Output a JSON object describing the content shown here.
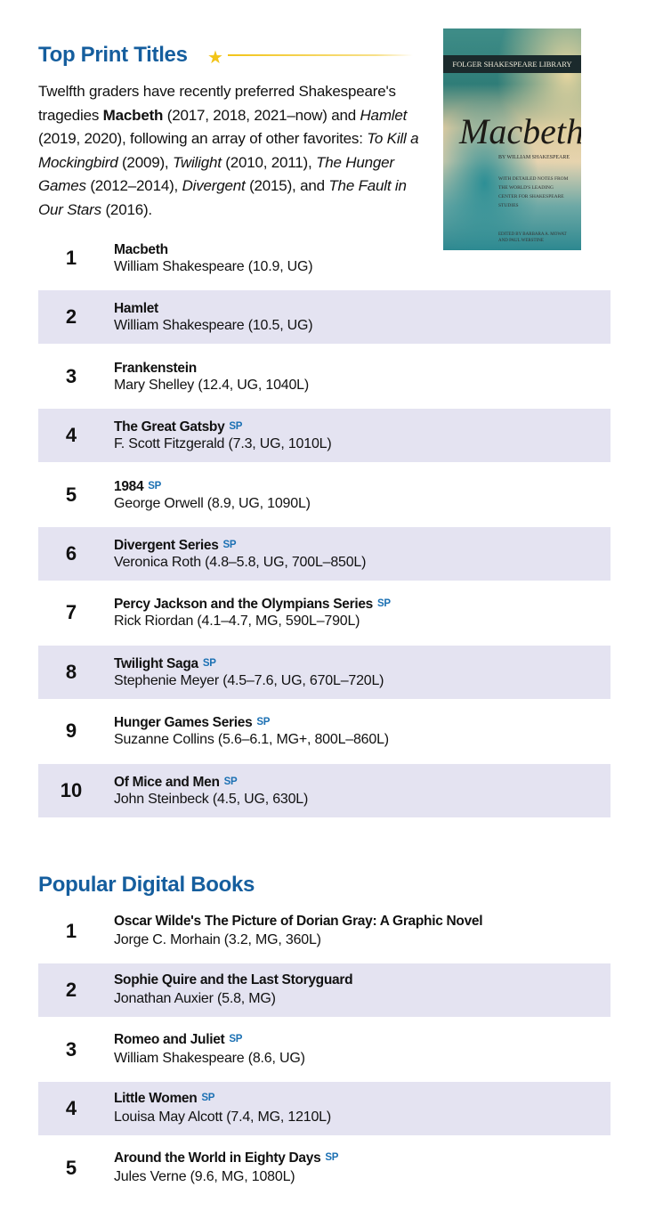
{
  "print": {
    "heading": "Top Print Titles",
    "intro": [
      {
        "t": "Twelfth graders have recently preferred Shakespeare's tragedies ",
        "s": "n"
      },
      {
        "t": "Macbeth",
        "s": "b"
      },
      {
        "t": " (2017, 2018, 2021–now) and ",
        "s": "n"
      },
      {
        "t": "Hamlet",
        "s": "i"
      },
      {
        "t": " (2019, 2020), following an array of other favorites: ",
        "s": "n"
      },
      {
        "t": "To Kill a Mockingbird",
        "s": "i"
      },
      {
        "t": " (2009), ",
        "s": "n"
      },
      {
        "t": "Twilight",
        "s": "i"
      },
      {
        "t": " (2010, 2011), ",
        "s": "n"
      },
      {
        "t": "The Hunger Games",
        "s": "i"
      },
      {
        "t": " (2012–2014), ",
        "s": "n"
      },
      {
        "t": "Divergent",
        "s": "i"
      },
      {
        "t": " (2015), and ",
        "s": "n"
      },
      {
        "t": "The Fault in Our Stars",
        "s": "i"
      },
      {
        "t": " (2016).",
        "s": "n"
      }
    ],
    "cover": {
      "series": "FOLGER SHAKESPEARE LIBRARY",
      "title": "Macbeth",
      "by": "BY WILLIAM SHAKESPEARE",
      "notes": "With detailed notes from the world's leading center for Shakespeare studies",
      "editors": "Edited by Barbara A. Mowat and Paul Werstine"
    },
    "items": [
      {
        "rank": "1",
        "title": "Macbeth",
        "sp": false,
        "author": "William Shakespeare (10.9, UG)"
      },
      {
        "rank": "2",
        "title": "Hamlet",
        "sp": false,
        "author": "William Shakespeare (10.5, UG)"
      },
      {
        "rank": "3",
        "title": "Frankenstein",
        "sp": false,
        "author": "Mary Shelley (12.4, UG, 1040L)"
      },
      {
        "rank": "4",
        "title": "The Great Gatsby",
        "sp": true,
        "author": "F. Scott Fitzgerald (7.3, UG, 1010L)"
      },
      {
        "rank": "5",
        "title": "1984",
        "sp": true,
        "author": "George Orwell (8.9, UG, 1090L)"
      },
      {
        "rank": "6",
        "title": "Divergent Series",
        "sp": true,
        "author": "Veronica Roth (4.8–5.8, UG, 700L–850L)"
      },
      {
        "rank": "7",
        "title": "Percy Jackson and the Olympians Series",
        "sp": true,
        "author": "Rick Riordan (4.1–4.7, MG, 590L–790L)"
      },
      {
        "rank": "8",
        "title": "Twilight Saga",
        "sp": true,
        "author": "Stephenie Meyer (4.5–7.6, UG, 670L–720L)"
      },
      {
        "rank": "9",
        "title": "Hunger Games Series",
        "sp": true,
        "author": "Suzanne Collins (5.6–6.1, MG+, 800L–860L)"
      },
      {
        "rank": "10",
        "title": "Of Mice and Men",
        "sp": true,
        "author": "John Steinbeck (4.5, UG, 630L)"
      }
    ]
  },
  "digital": {
    "heading": "Popular Digital Books",
    "items": [
      {
        "rank": "1",
        "title": "Oscar Wilde's The Picture of Dorian Gray: A Graphic Novel",
        "sp": false,
        "author": "Jorge C. Morhain (3.2, MG, 360L)"
      },
      {
        "rank": "2",
        "title": "Sophie Quire and the Last Storyguard",
        "sp": false,
        "author": "Jonathan Auxier (5.8, MG)"
      },
      {
        "rank": "3",
        "title": "Romeo and Juliet",
        "sp": true,
        "author": "William Shakespeare (8.6, UG)"
      },
      {
        "rank": "4",
        "title": "Little Women",
        "sp": true,
        "author": "Louisa May Alcott (7.4, MG, 1210L)"
      },
      {
        "rank": "5",
        "title": "Around the World in Eighty Days",
        "sp": true,
        "author": "Jules Verne (9.6, MG, 1080L)"
      }
    ]
  },
  "sp_label": "SP",
  "colors": {
    "heading": "#155e9e",
    "stripe": "#e4e3f1",
    "sp": "#1b70b3",
    "star": "#f2c418"
  }
}
